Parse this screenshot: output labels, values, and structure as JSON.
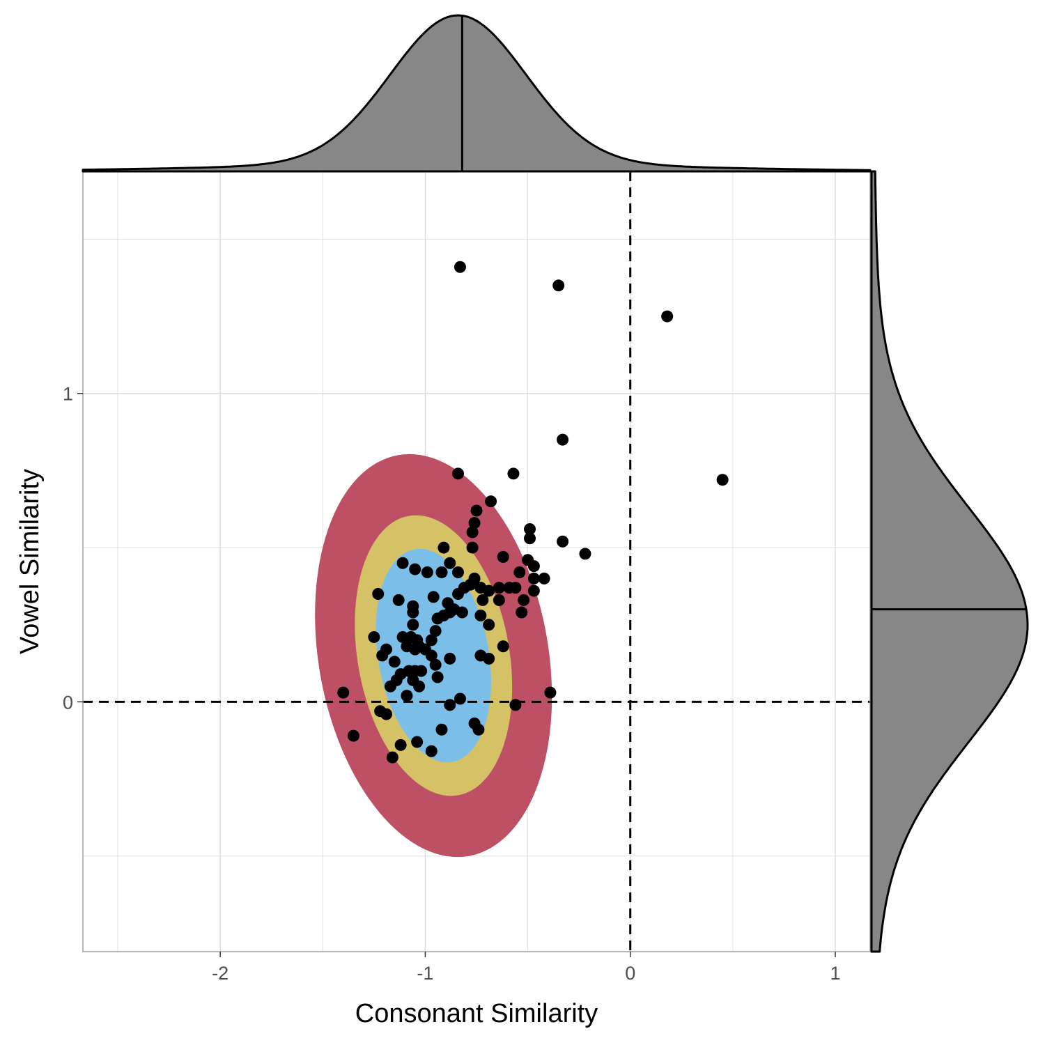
{
  "chart_data": {
    "type": "scatter",
    "title": "",
    "xlabel": "Consonant Similarity",
    "ylabel": "Vowel Similarity",
    "xlim": [
      -2.67,
      1.17
    ],
    "ylim": [
      -0.81,
      1.72
    ],
    "x_ticks": [
      -2,
      -1,
      0,
      1
    ],
    "y_ticks": [
      0,
      1
    ],
    "x_tick_labels": [
      "-2",
      "-1",
      "0",
      "1"
    ],
    "y_tick_labels": [
      "0",
      "1"
    ],
    "grid": true,
    "reference_lines": {
      "x": 0,
      "y": 0,
      "style": "dashed"
    },
    "colors": {
      "points": "#000000",
      "ellipse_outer": "#be5066",
      "ellipse_middle": "#d6c266",
      "ellipse_inner": "#7bbfe8",
      "marginal_fill": "#878787",
      "grid": "#dcdcdc",
      "panel_border": "#a0a0a0"
    },
    "ellipses": [
      {
        "level": "outer",
        "center": [
          -0.96,
          0.15
        ],
        "rx": 0.56,
        "ry": 0.66,
        "angle_deg": -10
      },
      {
        "level": "middle",
        "center": [
          -0.96,
          0.15
        ],
        "rx": 0.37,
        "ry": 0.46,
        "angle_deg": -10
      },
      {
        "level": "inner",
        "center": [
          -0.96,
          0.15
        ],
        "rx": 0.27,
        "ry": 0.35,
        "angle_deg": -10
      }
    ],
    "marginal_x": {
      "median": -0.82,
      "mean": -0.84,
      "sd": 0.33
    },
    "marginal_y": {
      "median": 0.3,
      "mean": 0.25,
      "sd": 0.38
    },
    "points": [
      [
        -0.83,
        1.41
      ],
      [
        -0.35,
        1.35
      ],
      [
        0.18,
        1.25
      ],
      [
        -0.33,
        0.85
      ],
      [
        0.45,
        0.72
      ],
      [
        -0.84,
        0.74
      ],
      [
        -0.57,
        0.74
      ],
      [
        -0.68,
        0.65
      ],
      [
        -0.75,
        0.62
      ],
      [
        -0.76,
        0.58
      ],
      [
        -0.77,
        0.55
      ],
      [
        -0.49,
        0.56
      ],
      [
        -0.49,
        0.53
      ],
      [
        -0.33,
        0.52
      ],
      [
        -0.22,
        0.48
      ],
      [
        -0.77,
        0.5
      ],
      [
        -0.91,
        0.5
      ],
      [
        -0.62,
        0.47
      ],
      [
        -0.5,
        0.46
      ],
      [
        -0.47,
        0.44
      ],
      [
        -1.11,
        0.45
      ],
      [
        -0.88,
        0.45
      ],
      [
        -1.05,
        0.43
      ],
      [
        -0.99,
        0.42
      ],
      [
        -0.92,
        0.42
      ],
      [
        -0.84,
        0.42
      ],
      [
        -0.54,
        0.42
      ],
      [
        -0.47,
        0.4
      ],
      [
        -0.42,
        0.4
      ],
      [
        -0.76,
        0.4
      ],
      [
        -0.78,
        0.38
      ],
      [
        -0.81,
        0.37
      ],
      [
        -0.73,
        0.37
      ],
      [
        -0.69,
        0.36
      ],
      [
        -0.64,
        0.37
      ],
      [
        -0.59,
        0.37
      ],
      [
        -0.56,
        0.37
      ],
      [
        -0.47,
        0.36
      ],
      [
        -1.23,
        0.35
      ],
      [
        -0.84,
        0.35
      ],
      [
        -0.72,
        0.33
      ],
      [
        -0.64,
        0.33
      ],
      [
        -1.13,
        0.33
      ],
      [
        -1.06,
        0.31
      ],
      [
        -0.96,
        0.34
      ],
      [
        -0.89,
        0.32
      ],
      [
        -0.86,
        0.3
      ],
      [
        -0.52,
        0.33
      ],
      [
        -0.88,
        0.29
      ],
      [
        -0.82,
        0.29
      ],
      [
        -1.06,
        0.29
      ],
      [
        -0.73,
        0.28
      ],
      [
        -0.53,
        0.29
      ],
      [
        -0.94,
        0.27
      ],
      [
        -0.91,
        0.28
      ],
      [
        -1.06,
        0.25
      ],
      [
        -0.69,
        0.25
      ],
      [
        -0.95,
        0.23
      ],
      [
        -1.25,
        0.21
      ],
      [
        -1.11,
        0.21
      ],
      [
        -1.07,
        0.21
      ],
      [
        -1.04,
        0.2
      ],
      [
        -0.97,
        0.2
      ],
      [
        -1.03,
        0.18
      ],
      [
        -0.62,
        0.18
      ],
      [
        -1.09,
        0.18
      ],
      [
        -1.05,
        0.17
      ],
      [
        -1.0,
        0.17
      ],
      [
        -0.97,
        0.15
      ],
      [
        -1.19,
        0.17
      ],
      [
        -1.21,
        0.15
      ],
      [
        -0.73,
        0.15
      ],
      [
        -0.69,
        0.14
      ],
      [
        -0.88,
        0.14
      ],
      [
        -1.15,
        0.13
      ],
      [
        -0.95,
        0.12
      ],
      [
        -1.02,
        0.1
      ],
      [
        -1.08,
        0.1
      ],
      [
        -1.05,
        0.1
      ],
      [
        -0.94,
        0.08
      ],
      [
        -1.12,
        0.09
      ],
      [
        -1.14,
        0.07
      ],
      [
        -1.06,
        0.07
      ],
      [
        -1.03,
        0.05
      ],
      [
        -1.17,
        0.05
      ],
      [
        -1.4,
        0.03
      ],
      [
        -0.39,
        0.03
      ],
      [
        -0.83,
        0.01
      ],
      [
        -1.09,
        0.02
      ],
      [
        -0.88,
        -0.01
      ],
      [
        -0.56,
        -0.01
      ],
      [
        -1.22,
        -0.03
      ],
      [
        -1.19,
        -0.04
      ],
      [
        -0.76,
        -0.07
      ],
      [
        -0.74,
        -0.09
      ],
      [
        -0.92,
        -0.09
      ],
      [
        -1.35,
        -0.11
      ],
      [
        -1.04,
        -0.13
      ],
      [
        -1.12,
        -0.14
      ],
      [
        -0.97,
        -0.16
      ],
      [
        -1.16,
        -0.18
      ]
    ]
  }
}
